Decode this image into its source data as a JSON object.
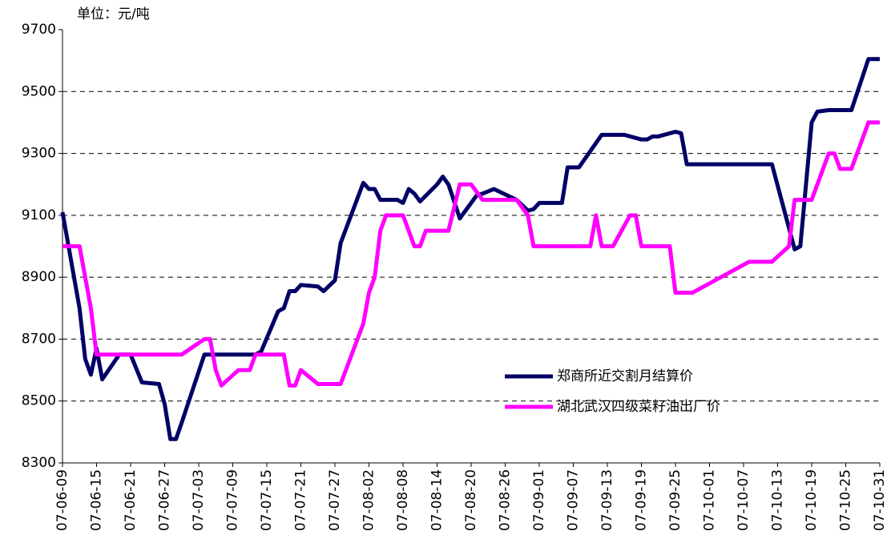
{
  "chart_data": {
    "type": "line",
    "subtitle": "单位：元/吨",
    "xlim": [
      "07-06-09",
      "07-10-31"
    ],
    "xticks": [
      "07-06-09",
      "07-06-15",
      "07-06-21",
      "07-06-27",
      "07-07-03",
      "07-07-09",
      "07-07-15",
      "07-07-21",
      "07-07-27",
      "07-08-02",
      "07-08-08",
      "07-08-14",
      "07-08-20",
      "07-08-26",
      "07-09-01",
      "07-09-07",
      "07-09-13",
      "07-09-19",
      "07-09-25",
      "07-10-01",
      "07-10-07",
      "07-10-13",
      "07-10-19",
      "07-10-25",
      "07-10-31"
    ],
    "ylim": [
      8300,
      9700
    ],
    "yticks": [
      8300,
      8500,
      8700,
      8900,
      9100,
      9300,
      9500,
      9700
    ],
    "grid": true,
    "series": [
      {
        "name": "郑商所近交割月结算价",
        "color": "#000066",
        "x": [
          "07-06-09",
          "07-06-12",
          "07-06-13",
          "07-06-14",
          "07-06-15",
          "07-06-16",
          "07-06-19",
          "07-06-21",
          "07-06-23",
          "07-06-26",
          "07-06-27",
          "07-06-28",
          "07-06-29",
          "07-06-30",
          "07-07-04",
          "07-07-13",
          "07-07-14",
          "07-07-17",
          "07-07-18",
          "07-07-19",
          "07-07-20",
          "07-07-21",
          "07-07-24",
          "07-07-25",
          "07-07-27",
          "07-07-28",
          "07-08-01",
          "07-08-02",
          "07-08-03",
          "07-08-04",
          "07-08-07",
          "07-08-08",
          "07-08-09",
          "07-08-10",
          "07-08-11",
          "07-08-14",
          "07-08-15",
          "07-08-16",
          "07-08-18",
          "07-08-21",
          "07-08-22",
          "07-08-24",
          "07-08-28",
          "07-08-30",
          "07-08-31",
          "07-09-01",
          "07-09-05",
          "07-09-06",
          "07-09-08",
          "07-09-12",
          "07-09-16",
          "07-09-19",
          "07-09-20",
          "07-09-21",
          "07-09-22",
          "07-09-25",
          "07-09-26",
          "07-09-27",
          "07-10-12",
          "07-10-16",
          "07-10-17",
          "07-10-19",
          "07-10-20",
          "07-10-22",
          "07-10-26",
          "07-10-29",
          "07-10-31"
        ],
        "values": [
          9110,
          8800,
          8636,
          8585,
          8670,
          8570,
          8650,
          8650,
          8560,
          8555,
          8490,
          8377,
          8377,
          8430,
          8650,
          8650,
          8660,
          8790,
          8800,
          8855,
          8855,
          8875,
          8870,
          8855,
          8890,
          9010,
          9205,
          9185,
          9185,
          9150,
          9150,
          9140,
          9185,
          9170,
          9145,
          9200,
          9225,
          9200,
          9090,
          9165,
          9170,
          9185,
          9150,
          9115,
          9120,
          9140,
          9140,
          9255,
          9255,
          9360,
          9360,
          9345,
          9345,
          9355,
          9355,
          9370,
          9365,
          9265,
          9265,
          8990,
          9000,
          9400,
          9435,
          9440,
          9440,
          9605,
          9605
        ]
      },
      {
        "name": "湖北武汉四级菜籽油出厂价",
        "color": "#ff00ff",
        "x": [
          "07-06-09",
          "07-06-12",
          "07-06-14",
          "07-06-15",
          "07-06-30",
          "07-07-04",
          "07-07-05",
          "07-07-06",
          "07-07-07",
          "07-07-10",
          "07-07-12",
          "07-07-13",
          "07-07-18",
          "07-07-19",
          "07-07-20",
          "07-07-21",
          "07-07-24",
          "07-07-28",
          "07-08-01",
          "07-08-02",
          "07-08-03",
          "07-08-04",
          "07-08-05",
          "07-08-08",
          "07-08-09",
          "07-08-10",
          "07-08-11",
          "07-08-12",
          "07-08-16",
          "07-08-18",
          "07-08-20",
          "07-08-22",
          "07-08-28",
          "07-08-30",
          "07-08-31",
          "07-09-10",
          "07-09-11",
          "07-09-12",
          "07-09-14",
          "07-09-17",
          "07-09-18",
          "07-09-19",
          "07-09-24",
          "07-09-25",
          "07-09-28",
          "07-10-08",
          "07-10-12",
          "07-10-15",
          "07-10-16",
          "07-10-19",
          "07-10-22",
          "07-10-23",
          "07-10-24",
          "07-10-26",
          "07-10-29",
          "07-10-31"
        ],
        "values": [
          9000,
          9000,
          8800,
          8650,
          8650,
          8700,
          8700,
          8600,
          8550,
          8600,
          8600,
          8650,
          8650,
          8550,
          8550,
          8600,
          8555,
          8555,
          8750,
          8850,
          8900,
          9050,
          9100,
          9100,
          9050,
          9000,
          9000,
          9050,
          9050,
          9200,
          9200,
          9150,
          9150,
          9100,
          9000,
          9000,
          9100,
          9000,
          9000,
          9100,
          9100,
          9000,
          9000,
          8850,
          8850,
          8950,
          8950,
          9000,
          9150,
          9150,
          9300,
          9300,
          9250,
          9250,
          9400,
          9400
        ]
      }
    ]
  }
}
